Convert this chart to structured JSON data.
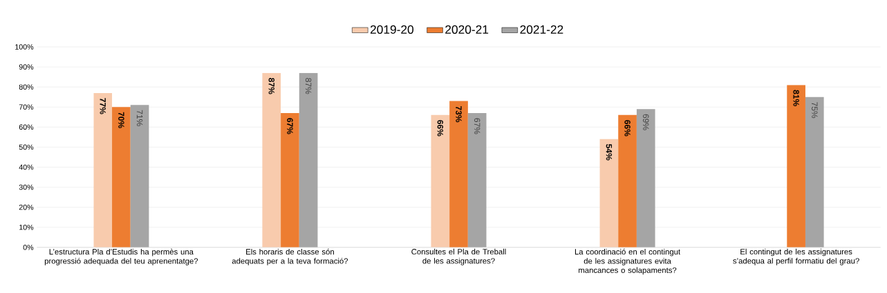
{
  "chart_data": {
    "type": "bar",
    "categories": [
      "L’estructura Pla d’Estudis ha permès una progressió adequada del teu aprenentatge?",
      "Els horaris de classe són adequats per a la teva formació?",
      "Consultes el Pla de Treball de les assignatures?",
      "La coordinació en el contingut de les assignatures evita mancances o solapaments?",
      "El  contingut de les assignatures s’adequa al perfil formatiu del grau?"
    ],
    "series": [
      {
        "name": "2019-20",
        "color": "#f8cbad",
        "values": [
          77,
          87,
          66,
          54,
          null
        ],
        "value_labels": [
          "77%",
          "87%",
          "66%",
          "54%",
          null
        ]
      },
      {
        "name": "2020-21",
        "color": "#ed7d31",
        "values": [
          70,
          67,
          73,
          66,
          81
        ],
        "value_labels": [
          "70%",
          "67%",
          "73%",
          "66%",
          "81%"
        ]
      },
      {
        "name": "2021-22",
        "color": "#a5a5a5",
        "values": [
          71,
          87,
          67,
          69,
          75
        ],
        "value_labels": [
          "71%",
          "87%",
          "67%",
          "69%",
          "75%"
        ]
      }
    ],
    "ylim": [
      0,
      100
    ],
    "yticks": [
      {
        "value": 0,
        "label": "0%"
      },
      {
        "value": 10,
        "label": "10%"
      },
      {
        "value": 20,
        "label": "20%"
      },
      {
        "value": 30,
        "label": "30%"
      },
      {
        "value": 40,
        "label": "40%"
      },
      {
        "value": 50,
        "label": "50%"
      },
      {
        "value": 60,
        "label": "60%"
      },
      {
        "value": 70,
        "label": "70%"
      },
      {
        "value": 80,
        "label": "80%"
      },
      {
        "value": 90,
        "label": "90%"
      },
      {
        "value": 100,
        "label": "100%"
      }
    ],
    "grid": "y",
    "legend": "top"
  }
}
